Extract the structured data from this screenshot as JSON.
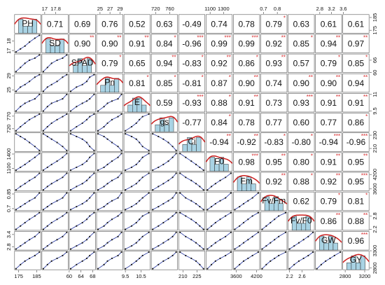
{
  "chart_data": {
    "type": "scatter-matrix",
    "title": "",
    "variables": [
      "PH",
      "SD",
      "SPAD",
      "Pn",
      "E",
      "gs",
      "Ci",
      "F0",
      "Fm",
      "Fv/Fm",
      "Fv/F0",
      "GW",
      "GY"
    ],
    "correlations": [
      [
        "",
        "0.71",
        "0.69",
        "0.76",
        "0.52",
        "0.63",
        "-0.49",
        "0.74",
        "0.78",
        "0.79",
        "0.63",
        "0.61",
        "0.61"
      ],
      [
        "",
        "",
        "0.90",
        "0.90",
        "0.91",
        "0.84",
        "-0.96",
        "0.99",
        "0.99",
        "0.92",
        "0.85",
        "0.94",
        "0.97"
      ],
      [
        "",
        "",
        "",
        "0.79",
        "0.65",
        "0.94",
        "-0.83",
        "0.92",
        "0.86",
        "0.93",
        "0.57",
        "0.79",
        "0.85"
      ],
      [
        "",
        "",
        "",
        "",
        "0.81",
        "0.85",
        "-0.81",
        "0.87",
        "0.90",
        "0.74",
        "0.90",
        "0.90",
        "0.94"
      ],
      [
        "",
        "",
        "",
        "",
        "",
        "0.59",
        "-0.93",
        "0.88",
        "0.91",
        "0.73",
        "0.93",
        "0.91",
        "0.91"
      ],
      [
        "",
        "",
        "",
        "",
        "",
        "",
        "-0.77",
        "0.84",
        "0.78",
        "0.77",
        "0.60",
        "0.77",
        "0.86"
      ],
      [
        "",
        "",
        "",
        "",
        "",
        "",
        "",
        "-0.94",
        "-0.92",
        "-0.83",
        "-0.80",
        "-0.94",
        "-0.96"
      ],
      [
        "",
        "",
        "",
        "",
        "",
        "",
        "",
        "",
        "0.98",
        "0.95",
        "0.80",
        "0.91",
        "0.95"
      ],
      [
        "",
        "",
        "",
        "",
        "",
        "",
        "",
        "",
        "",
        "0.92",
        "0.88",
        "0.92",
        "0.95"
      ],
      [
        "",
        "",
        "",
        "",
        "",
        "",
        "",
        "",
        "",
        "",
        "0.62",
        "0.79",
        "0.81"
      ],
      [
        "",
        "",
        "",
        "",
        "",
        "",
        "",
        "",
        "",
        "",
        "",
        "0.86",
        "0.88"
      ],
      [
        "",
        "",
        "",
        "",
        "",
        "",
        "",
        "",
        "",
        "",
        "",
        "",
        "0.96"
      ],
      [
        "",
        "",
        "",
        "",
        "",
        "",
        "",
        "",
        "",
        "",
        "",
        "",
        ""
      ]
    ],
    "significance": [
      [
        "",
        "",
        "",
        "",
        "",
        "",
        "",
        "",
        "",
        "*",
        "",
        "",
        ""
      ],
      [
        "",
        "",
        "**",
        "**",
        "**",
        "*",
        "***",
        "***",
        "***",
        "**",
        "*",
        "**",
        "**"
      ],
      [
        "",
        "",
        "",
        "*",
        "",
        "**",
        "*",
        "**",
        "*",
        "**",
        "",
        "*",
        "*"
      ],
      [
        "",
        "",
        "",
        "",
        "*",
        "*",
        "*",
        "*",
        "**",
        "",
        "**",
        "**",
        "**"
      ],
      [
        "",
        "",
        "",
        "",
        "",
        "",
        "***",
        "*",
        "**",
        "",
        "***",
        "**",
        "**"
      ],
      [
        "",
        "",
        "",
        "",
        "",
        "",
        "",
        "*",
        "",
        "",
        "",
        "",
        "*"
      ],
      [
        "",
        "",
        "",
        "",
        "",
        "",
        "",
        "**",
        "**",
        "*",
        "*",
        "***",
        "***"
      ],
      [
        "",
        "",
        "",
        "",
        "",
        "",
        "",
        "",
        "***",
        "**",
        "*",
        "**",
        "**"
      ],
      [
        "",
        "",
        "",
        "",
        "",
        "",
        "",
        "",
        "",
        "**",
        "*",
        "**",
        "***"
      ],
      [
        "",
        "",
        "",
        "",
        "",
        "",
        "",
        "",
        "",
        "",
        "",
        "*",
        "*"
      ],
      [
        "",
        "",
        "",
        "",
        "",
        "",
        "",
        "",
        "",
        "",
        "",
        "**",
        "**"
      ],
      [
        "",
        "",
        "",
        "",
        "",
        "",
        "",
        "",
        "",
        "",
        "",
        "",
        "***"
      ],
      [
        "",
        "",
        "",
        "",
        "",
        "",
        "",
        "",
        "",
        "",
        "",
        "",
        ""
      ]
    ],
    "observations": {
      "PH": [
        173.5,
        176.0,
        178.5,
        181.0,
        184.0,
        186.5
      ],
      "SD": [
        16.9,
        17.2,
        17.5,
        17.9,
        18.3,
        18.6
      ],
      "SPAD": [
        60.5,
        62.5,
        64.5,
        66.0,
        67.0,
        68.5
      ],
      "Pn": [
        24.6,
        25.8,
        26.5,
        27.4,
        28.6,
        29.3
      ],
      "E": [
        9.5,
        9.9,
        10.2,
        10.4,
        10.6,
        11.0
      ],
      "gs": [
        712,
        728,
        742,
        756,
        768,
        778
      ],
      "Ci": [
        232,
        228,
        224,
        219,
        213,
        207
      ],
      "F0": [
        1060,
        1120,
        1180,
        1250,
        1330,
        1410
      ],
      "Fm": [
        3560,
        3700,
        3820,
        3950,
        4080,
        4250
      ],
      "Fv/Fm": [
        0.69,
        0.72,
        0.75,
        0.78,
        0.81,
        0.86
      ],
      "Fv/F0": [
        2.2,
        2.35,
        2.5,
        2.65,
        2.8,
        2.95
      ],
      "GW": [
        2.7,
        2.85,
        3.0,
        3.15,
        3.3,
        3.5
      ],
      "GY": [
        2780,
        2900,
        3000,
        3080,
        3160,
        3260
      ]
    },
    "top_axis_ticks": [
      {
        "variable": "SD",
        "ticks": [
          17.0,
          17.8
        ]
      },
      {
        "variable": "Pn",
        "ticks": [
          25,
          27,
          29
        ]
      },
      {
        "variable": "gs",
        "ticks": [
          720,
          760
        ]
      },
      {
        "variable": "F0",
        "ticks": [
          1100,
          1300
        ]
      },
      {
        "variable": "Fv/Fm",
        "ticks": [
          0.7,
          0.8
        ]
      },
      {
        "variable": "GW",
        "ticks": [
          2.8,
          3.2,
          3.6
        ]
      }
    ],
    "bottom_axis_ticks": [
      {
        "variable": "PH",
        "ticks": [
          175,
          185
        ]
      },
      {
        "variable": "SPAD",
        "ticks": [
          60,
          64,
          68
        ]
      },
      {
        "variable": "E",
        "ticks": [
          9.5,
          10.5
        ]
      },
      {
        "variable": "Ci",
        "ticks": [
          210,
          225
        ]
      },
      {
        "variable": "Fm",
        "ticks": [
          3600,
          4200
        ]
      },
      {
        "variable": "Fv/F0",
        "ticks": [
          2.2,
          2.6
        ]
      },
      {
        "variable": "GY",
        "ticks": [
          2800,
          3200
        ]
      }
    ],
    "left_axis_ticks": [
      {
        "variable": "SD",
        "ticks": [
          18.0,
          17.0
        ]
      },
      {
        "variable": "Pn",
        "ticks": [
          29,
          25
        ]
      },
      {
        "variable": "gs",
        "ticks": [
          770,
          720
        ]
      },
      {
        "variable": "F0",
        "ticks": [
          1400,
          1100
        ]
      },
      {
        "variable": "Fv/Fm",
        "ticks": [
          0.85,
          0.7
        ]
      },
      {
        "variable": "GW",
        "ticks": [
          3.4,
          2.8
        ]
      }
    ],
    "right_axis_ticks": [
      {
        "variable": "PH",
        "ticks": [
          185,
          175
        ]
      },
      {
        "variable": "SPAD",
        "ticks": [
          66,
          60
        ]
      },
      {
        "variable": "E",
        "ticks": [
          11.0,
          9.5
        ]
      },
      {
        "variable": "Ci",
        "ticks": [
          230,
          210
        ]
      },
      {
        "variable": "Fm",
        "ticks": [
          4200,
          3600
        ]
      },
      {
        "variable": "Fv/F0",
        "ticks": [
          2.8,
          2.2
        ]
      },
      {
        "variable": "GY",
        "ticks": [
          3300,
          2800
        ]
      }
    ],
    "histogram_bins": 4,
    "colors": {
      "histogram_fill": "#a9d3e4",
      "histogram_stroke": "#2b2b2b",
      "density_line": "#cc1f1f",
      "smooth_line": "#3848a8",
      "point": "#1a1a1a",
      "star": "#d62728",
      "text": "#111111"
    }
  }
}
